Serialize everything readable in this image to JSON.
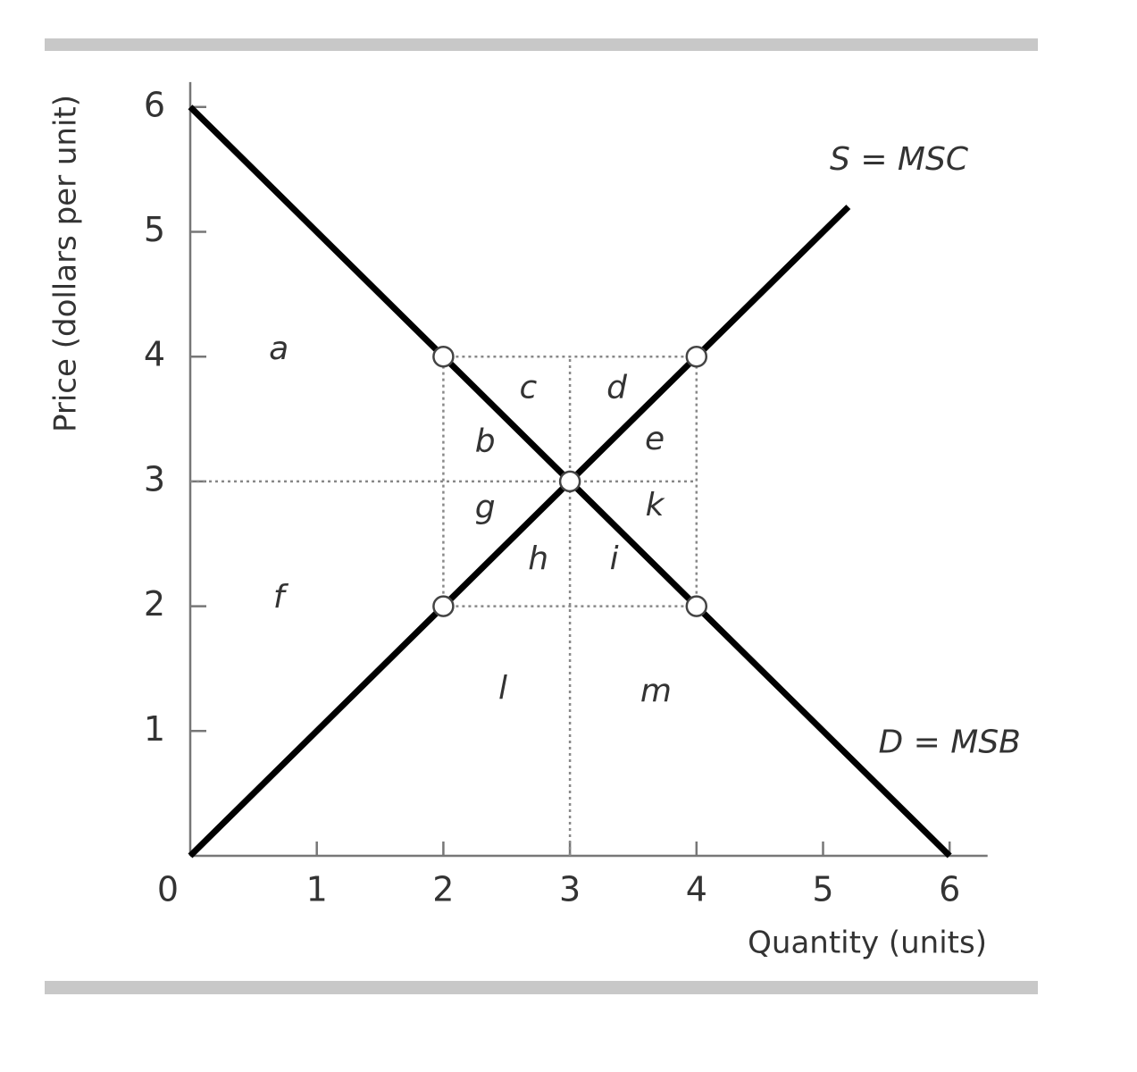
{
  "chart_data": {
    "type": "line",
    "x_label": "Quantity (units)",
    "y_label": "Price (dollars per unit)",
    "xlim": [
      0,
      6.3
    ],
    "ylim": [
      0,
      6.2
    ],
    "xticks": [
      0,
      1,
      2,
      3,
      4,
      5,
      6
    ],
    "yticks": [
      1,
      2,
      3,
      4,
      5,
      6
    ],
    "series": [
      {
        "name": "D = MSB",
        "color": "#000000",
        "x": [
          0,
          6
        ],
        "values": [
          6,
          0
        ],
        "label_x": 6.0,
        "label_y": 0.9
      },
      {
        "name": "S = MSC",
        "color": "#000000",
        "x": [
          0,
          5.2
        ],
        "values": [
          0,
          5.2
        ],
        "label_x": 5.6,
        "label_y": 5.57
      }
    ],
    "points": [
      {
        "x": 2,
        "y": 4
      },
      {
        "x": 4,
        "y": 4
      },
      {
        "x": 3,
        "y": 3
      },
      {
        "x": 2,
        "y": 2
      },
      {
        "x": 4,
        "y": 2
      }
    ],
    "guides": [
      {
        "x": [
          2,
          4
        ],
        "y": [
          4,
          4
        ]
      },
      {
        "x": [
          0,
          4
        ],
        "y": [
          3,
          3
        ]
      },
      {
        "x": [
          2,
          4
        ],
        "y": [
          2,
          2
        ]
      },
      {
        "x": [
          2,
          2
        ],
        "y": [
          2,
          4
        ]
      },
      {
        "x": [
          3,
          3
        ],
        "y": [
          0,
          4
        ]
      },
      {
        "x": [
          4,
          4
        ],
        "y": [
          2,
          4
        ]
      }
    ],
    "regions": [
      {
        "label": "a",
        "x": 0.7,
        "y": 4.05
      },
      {
        "label": "c",
        "x": 2.67,
        "y": 3.74
      },
      {
        "label": "d",
        "x": 3.37,
        "y": 3.74
      },
      {
        "label": "b",
        "x": 2.33,
        "y": 3.31
      },
      {
        "label": "e",
        "x": 3.67,
        "y": 3.33
      },
      {
        "label": "g",
        "x": 2.33,
        "y": 2.78
      },
      {
        "label": "k",
        "x": 3.67,
        "y": 2.8
      },
      {
        "label": "h",
        "x": 2.75,
        "y": 2.37
      },
      {
        "label": "i",
        "x": 3.35,
        "y": 2.37
      },
      {
        "label": "f",
        "x": 0.7,
        "y": 2.06
      },
      {
        "label": "l",
        "x": 2.47,
        "y": 1.33
      },
      {
        "label": "m",
        "x": 3.68,
        "y": 1.31
      }
    ]
  }
}
